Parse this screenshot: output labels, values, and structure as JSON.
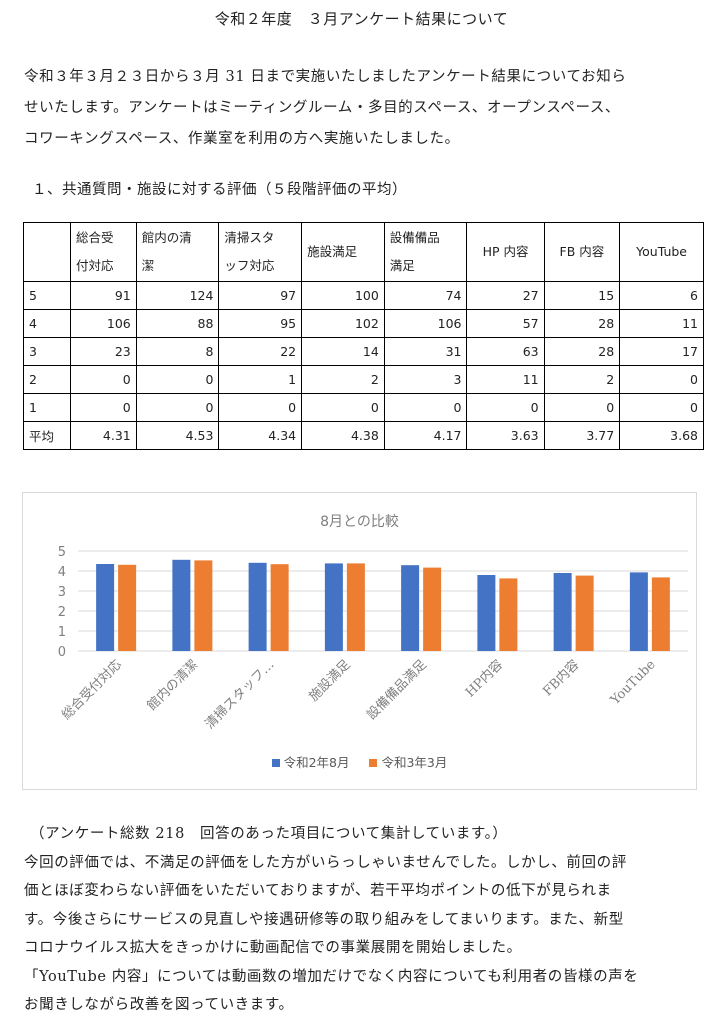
{
  "title": "令和２年度　３月アンケート結果について",
  "intro_lines": [
    "令和３年３月２３日から３月 31 日まで実施いたしましたアンケート結果についてお知ら",
    "せいたします。アンケートはミーティングルーム・多目的スペース、オープンスペース、",
    "コワーキングスペース、作業室を利用の方へ実施いたしました。"
  ],
  "section_heading": "１、共通質問・施設に対する評価（５段階評価の平均）",
  "table": {
    "headers": [
      [
        "総合受",
        "付対応"
      ],
      [
        "館内の清",
        "潔"
      ],
      [
        "清掃スタ",
        "ッフ対応"
      ],
      [
        "施設満足"
      ],
      [
        "設備備品",
        "満足"
      ],
      [
        "HP 内容"
      ],
      [
        "FB 内容"
      ],
      [
        "YouTube"
      ]
    ],
    "rows": [
      {
        "label": "5",
        "values": [
          "91",
          "124",
          "97",
          "100",
          "74",
          "27",
          "15",
          "6"
        ]
      },
      {
        "label": "4",
        "values": [
          "106",
          "88",
          "95",
          "102",
          "106",
          "57",
          "28",
          "11"
        ]
      },
      {
        "label": "3",
        "values": [
          "23",
          "8",
          "22",
          "14",
          "31",
          "63",
          "28",
          "17"
        ]
      },
      {
        "label": "2",
        "values": [
          "0",
          "0",
          "1",
          "2",
          "3",
          "11",
          "2",
          "0"
        ]
      },
      {
        "label": "1",
        "values": [
          "0",
          "0",
          "0",
          "0",
          "0",
          "0",
          "0",
          "0"
        ]
      },
      {
        "label": "平均",
        "values": [
          "4.31",
          "4.53",
          "4.34",
          "4.38",
          "4.17",
          "3.63",
          "3.77",
          "3.68"
        ]
      }
    ]
  },
  "chart_data": {
    "type": "bar",
    "title": "8月との比較",
    "categories": [
      "総合受付対応",
      "館内の清潔",
      "清掃スタッフ…",
      "施設満足",
      "設備備品満足",
      "HP内容",
      "FB内容",
      "YouTube"
    ],
    "series": [
      {
        "name": "令和2年8月",
        "color": "#4472c4",
        "values": [
          4.35,
          4.56,
          4.41,
          4.38,
          4.29,
          3.8,
          3.9,
          3.93
        ]
      },
      {
        "name": "令和3年3月",
        "color": "#ed7d31",
        "values": [
          4.31,
          4.53,
          4.34,
          4.38,
          4.17,
          3.63,
          3.77,
          3.68
        ]
      }
    ],
    "ylim": [
      0,
      5
    ],
    "yticks": [
      "0",
      "1",
      "2",
      "3",
      "4",
      "5"
    ],
    "grid": true,
    "legend_position": "bottom"
  },
  "footer_lines": [
    "（アンケート総数 218　回答のあった項目について集計しています。）",
    "今回の評価では、不満足の評価をした方がいらっしゃいませんでした。しかし、前回の評",
    "価とほぼ変わらない評価をいただいておりますが、若干平均ポイントの低下が見られま",
    "す。今後さらにサービスの見直しや接遇研修等の取り組みをしてまいります。また、新型",
    "コロナウイルス拡大をきっかけに動画配信での事業展開を開始しました。",
    "「YouTube 内容」については動画数の増加だけでなく内容についても利用者の皆様の声を",
    "お聞きしながら改善を図っていきます。"
  ]
}
